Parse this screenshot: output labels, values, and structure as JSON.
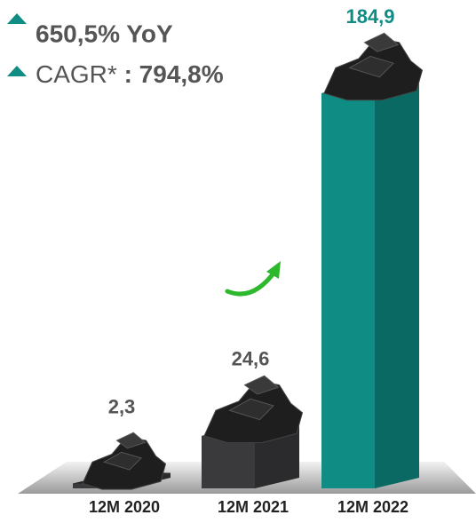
{
  "chart_data": {
    "type": "bar",
    "annotations": [
      "650,5% YoY"
    ],
    "cagr": {
      "label": "CAGR*",
      "value": ": 794,8%"
    },
    "categories": [
      "12M 2020",
      "12M 2021",
      "12M 2022"
    ],
    "values": [
      2.3,
      24.6,
      184.9
    ],
    "value_labels": [
      "2,3",
      "24,6",
      "184,9"
    ],
    "colors": [
      "#3a3a3c",
      "#3a3a3c",
      "#0f8c84"
    ],
    "label_colors": [
      "#555555",
      "#555555",
      "#0f8c84"
    ]
  }
}
